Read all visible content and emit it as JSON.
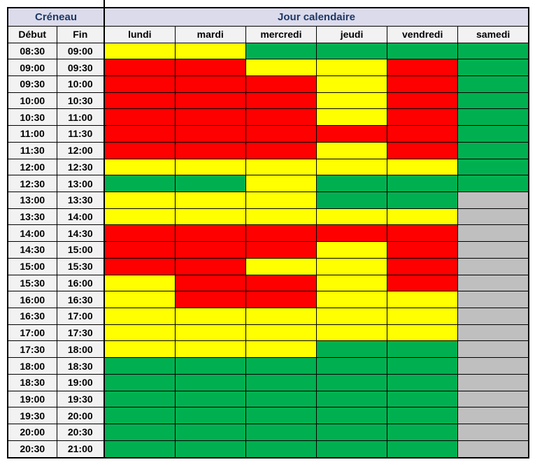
{
  "header": {
    "creneau": "Créneau",
    "jour_calendaire": "Jour calendaire",
    "debut": "Début",
    "fin": "Fin"
  },
  "chart_data": {
    "type": "heatmap",
    "title": "Jour calendaire",
    "columns": [
      "lundi",
      "mardi",
      "mercredi",
      "jeudi",
      "vendredi",
      "samedi"
    ],
    "row_label_columns": [
      "Début",
      "Fin"
    ],
    "cell_colors": {
      "red": "#FF0000",
      "yellow": "#FFFF00",
      "green": "#00B050",
      "gray": "#BFBFBF"
    },
    "rows": [
      {
        "debut": "08:30",
        "fin": "09:00",
        "cells": [
          "yellow",
          "yellow",
          "green",
          "green",
          "green",
          "green"
        ]
      },
      {
        "debut": "09:00",
        "fin": "09:30",
        "cells": [
          "red",
          "red",
          "yellow",
          "yellow",
          "red",
          "green"
        ]
      },
      {
        "debut": "09:30",
        "fin": "10:00",
        "cells": [
          "red",
          "red",
          "red",
          "yellow",
          "red",
          "green"
        ]
      },
      {
        "debut": "10:00",
        "fin": "10:30",
        "cells": [
          "red",
          "red",
          "red",
          "yellow",
          "red",
          "green"
        ]
      },
      {
        "debut": "10:30",
        "fin": "11:00",
        "cells": [
          "red",
          "red",
          "red",
          "yellow",
          "red",
          "green"
        ]
      },
      {
        "debut": "11:00",
        "fin": "11:30",
        "cells": [
          "red",
          "red",
          "red",
          "red",
          "red",
          "green"
        ]
      },
      {
        "debut": "11:30",
        "fin": "12:00",
        "cells": [
          "red",
          "red",
          "red",
          "yellow",
          "red",
          "green"
        ]
      },
      {
        "debut": "12:00",
        "fin": "12:30",
        "cells": [
          "yellow",
          "yellow",
          "yellow",
          "yellow",
          "yellow",
          "green"
        ]
      },
      {
        "debut": "12:30",
        "fin": "13:00",
        "cells": [
          "green",
          "green",
          "yellow",
          "green",
          "green",
          "green"
        ]
      },
      {
        "debut": "13:00",
        "fin": "13:30",
        "cells": [
          "yellow",
          "yellow",
          "yellow",
          "green",
          "green",
          "gray"
        ]
      },
      {
        "debut": "13:30",
        "fin": "14:00",
        "cells": [
          "yellow",
          "yellow",
          "yellow",
          "yellow",
          "yellow",
          "gray"
        ]
      },
      {
        "debut": "14:00",
        "fin": "14:30",
        "cells": [
          "red",
          "red",
          "red",
          "red",
          "red",
          "gray"
        ]
      },
      {
        "debut": "14:30",
        "fin": "15:00",
        "cells": [
          "red",
          "red",
          "red",
          "yellow",
          "red",
          "gray"
        ]
      },
      {
        "debut": "15:00",
        "fin": "15:30",
        "cells": [
          "red",
          "red",
          "yellow",
          "yellow",
          "red",
          "gray"
        ]
      },
      {
        "debut": "15:30",
        "fin": "16:00",
        "cells": [
          "yellow",
          "red",
          "red",
          "yellow",
          "red",
          "gray"
        ]
      },
      {
        "debut": "16:00",
        "fin": "16:30",
        "cells": [
          "yellow",
          "red",
          "red",
          "yellow",
          "yellow",
          "gray"
        ]
      },
      {
        "debut": "16:30",
        "fin": "17:00",
        "cells": [
          "yellow",
          "yellow",
          "yellow",
          "yellow",
          "yellow",
          "gray"
        ]
      },
      {
        "debut": "17:00",
        "fin": "17:30",
        "cells": [
          "yellow",
          "yellow",
          "yellow",
          "yellow",
          "yellow",
          "gray"
        ]
      },
      {
        "debut": "17:30",
        "fin": "18:00",
        "cells": [
          "yellow",
          "yellow",
          "yellow",
          "green",
          "green",
          "gray"
        ]
      },
      {
        "debut": "18:00",
        "fin": "18:30",
        "cells": [
          "green",
          "green",
          "green",
          "green",
          "green",
          "gray"
        ]
      },
      {
        "debut": "18:30",
        "fin": "19:00",
        "cells": [
          "green",
          "green",
          "green",
          "green",
          "green",
          "gray"
        ]
      },
      {
        "debut": "19:00",
        "fin": "19:30",
        "cells": [
          "green",
          "green",
          "green",
          "green",
          "green",
          "gray"
        ]
      },
      {
        "debut": "19:30",
        "fin": "20:00",
        "cells": [
          "green",
          "green",
          "green",
          "green",
          "green",
          "gray"
        ]
      },
      {
        "debut": "20:00",
        "fin": "20:30",
        "cells": [
          "green",
          "green",
          "green",
          "green",
          "green",
          "gray"
        ]
      },
      {
        "debut": "20:30",
        "fin": "21:00",
        "cells": [
          "green",
          "green",
          "green",
          "green",
          "green",
          "gray"
        ]
      }
    ]
  },
  "style_colors": {
    "section_header_fill": "#DBDBEC",
    "section_header_text": "#1F3864",
    "label_fill": "#F2F2F2",
    "grid_border": "#000000"
  }
}
